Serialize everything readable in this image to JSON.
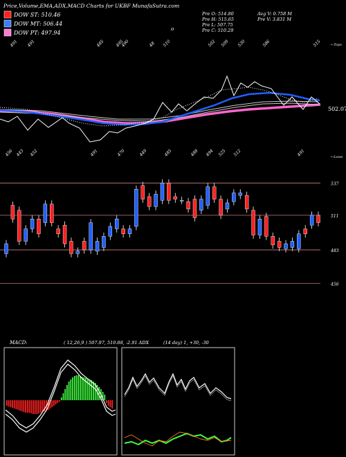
{
  "header": {
    "title": "Price,Volume,EMA,ADX,MACD Charts for UKBF MunafaSutra.com",
    "legend": [
      {
        "label": "DOW ST: 510.46",
        "color": "#ff2020"
      },
      {
        "label": "DOW MT: 506.44",
        "color": "#3a7bff"
      },
      {
        "label": "DOW PT: 497.94",
        "color": "#ff7ad0"
      }
    ],
    "stats": [
      {
        "left": "Pre  O: 514.80",
        "right": "Avg V: 0.758  M"
      },
      {
        "left": "Pre  H: 515.65",
        "right": "Pre   V: 3.831 M"
      },
      {
        "left": "Pre  L: 507.75",
        "right": ""
      },
      {
        "left": "Pre  C: 510.29",
        "right": ""
      }
    ],
    "o_marker": "o"
  },
  "colors": {
    "background": "#000000",
    "up": "#2060ff",
    "down": "#ff2020",
    "ema_short": "#2060ff",
    "ema_long": "#ff66cc",
    "macd_hist_pos": "#40ff40",
    "macd_hist_neg": "#ff2020",
    "adx_pos": "#40ff40",
    "adx_neg": "#ff7a20",
    "guide": "#ff8080"
  },
  "ema_panel": {
    "top_label": "←Tops",
    "bottom_label": "←Lows",
    "current_label": "502.07",
    "top_ticks": [
      "491",
      "491",
      "485",
      "495",
      "490",
      "48",
      "510",
      "502",
      "509",
      "530",
      "586",
      "515"
    ],
    "bottom_ticks": [
      "456",
      "443",
      "452",
      "491",
      "470",
      "449",
      "485",
      "488",
      "494",
      "525",
      "512",
      "491"
    ]
  },
  "candle_panel": {
    "levels": [
      "537",
      "511",
      "483",
      "456"
    ]
  },
  "macd_panel": {
    "label": "MACD:",
    "params": "( 12,26,9 ) 507.97,  510.88, -2.91 ADX"
  },
  "adx_panel": {
    "params": "(14  day) 1,  +30,  -30"
  },
  "chart_data": {
    "type": "candlestick",
    "candles": [
      {
        "open": 480,
        "close": 488
      },
      {
        "open": 519,
        "close": 508
      },
      {
        "open": 515,
        "close": 490
      },
      {
        "open": 490,
        "close": 500
      },
      {
        "open": 500,
        "close": 508
      },
      {
        "open": 508,
        "close": 496
      },
      {
        "open": 505,
        "close": 520
      },
      {
        "open": 520,
        "close": 505
      },
      {
        "open": 500,
        "close": 496
      },
      {
        "open": 503,
        "close": 488
      },
      {
        "open": 490,
        "close": 480
      },
      {
        "open": 480,
        "close": 482
      },
      {
        "open": 490,
        "close": 483
      },
      {
        "open": 483,
        "close": 505
      },
      {
        "open": 482,
        "close": 490
      },
      {
        "open": 485,
        "close": 494
      },
      {
        "open": 494,
        "close": 502
      },
      {
        "open": 500,
        "close": 508
      },
      {
        "open": 500,
        "close": 496
      },
      {
        "open": 496,
        "close": 500
      },
      {
        "open": 502,
        "close": 532
      },
      {
        "open": 535,
        "close": 524
      },
      {
        "open": 526,
        "close": 518
      },
      {
        "open": 518,
        "close": 528
      },
      {
        "open": 523,
        "close": 537
      },
      {
        "open": 537,
        "close": 523
      },
      {
        "open": 526,
        "close": 524
      },
      {
        "open": 523,
        "close": 523
      },
      {
        "open": 522,
        "close": 516
      },
      {
        "open": 524,
        "close": 509
      },
      {
        "open": 515,
        "close": 524
      },
      {
        "open": 519,
        "close": 534
      },
      {
        "open": 534,
        "close": 524
      },
      {
        "open": 524,
        "close": 511
      },
      {
        "open": 516,
        "close": 521
      },
      {
        "open": 522,
        "close": 529
      },
      {
        "open": 527,
        "close": 529
      },
      {
        "open": 527,
        "close": 516
      },
      {
        "open": 515,
        "close": 495
      },
      {
        "open": 495,
        "close": 508
      },
      {
        "open": 510,
        "close": 494
      },
      {
        "open": 494,
        "close": 487
      },
      {
        "open": 490,
        "close": 485
      },
      {
        "open": 484,
        "close": 488
      },
      {
        "open": 485,
        "close": 490
      },
      {
        "open": 484,
        "close": 496
      },
      {
        "open": 500,
        "close": 496
      },
      {
        "open": 503,
        "close": 511
      },
      {
        "open": 511,
        "close": 505
      }
    ],
    "ylim": [
      450,
      545
    ]
  }
}
